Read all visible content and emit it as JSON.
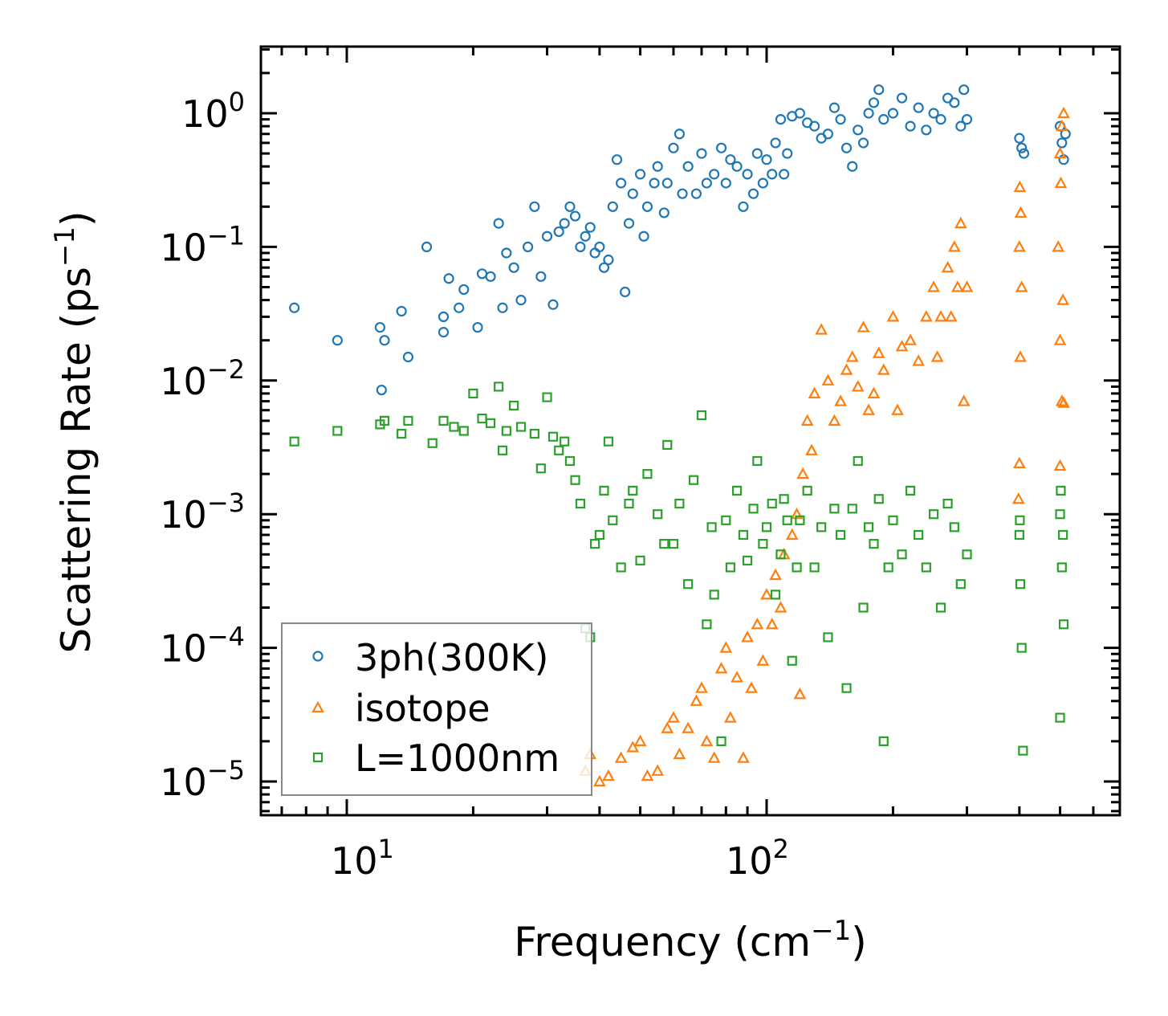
{
  "chart_data": {
    "type": "scatter",
    "title": "",
    "xlabel": "Frequency (cm",
    "xlabel_sup": "−1",
    "xlabel_end": ")",
    "ylabel": "Scattering Rate (ps",
    "ylabel_sup": "−1",
    "ylabel_end": ")",
    "xscale": "log",
    "yscale": "log",
    "xlim": [
      6.2,
      694
    ],
    "ylim": [
      5.6e-06,
      3.16
    ],
    "x_ticks": [
      {
        "base": "10",
        "exp": "1",
        "value": 10
      },
      {
        "base": "10",
        "exp": "2",
        "value": 100
      }
    ],
    "y_ticks": [
      {
        "base": "10",
        "exp": "0",
        "value": 1
      },
      {
        "base": "10",
        "exp": "−1",
        "value": 0.1
      },
      {
        "base": "10",
        "exp": "−2",
        "value": 0.01
      },
      {
        "base": "10",
        "exp": "−3",
        "value": 0.001
      },
      {
        "base": "10",
        "exp": "−4",
        "value": 0.0001
      },
      {
        "base": "10",
        "exp": "−5",
        "value": 1e-05
      }
    ],
    "grid": false,
    "legend_placement": "lower-left",
    "series": [
      {
        "name": "3ph(300K)",
        "marker": "circle",
        "color": "#1f77b4",
        "points": [
          [
            7.5,
            0.035
          ],
          [
            9.5,
            0.02
          ],
          [
            12,
            0.025
          ],
          [
            12.3,
            0.02
          ],
          [
            12.1,
            0.0085
          ],
          [
            13.5,
            0.033
          ],
          [
            14,
            0.015
          ],
          [
            15.5,
            0.1
          ],
          [
            17,
            0.03
          ],
          [
            17,
            0.023
          ],
          [
            17.5,
            0.058
          ],
          [
            18.5,
            0.035
          ],
          [
            19,
            0.048
          ],
          [
            20.5,
            0.025
          ],
          [
            21,
            0.063
          ],
          [
            22,
            0.06
          ],
          [
            23,
            0.15
          ],
          [
            23.5,
            0.035
          ],
          [
            24,
            0.09
          ],
          [
            25,
            0.07
          ],
          [
            26,
            0.04
          ],
          [
            27,
            0.1
          ],
          [
            28,
            0.2
          ],
          [
            29,
            0.06
          ],
          [
            30,
            0.12
          ],
          [
            31,
            0.037
          ],
          [
            32,
            0.13
          ],
          [
            33,
            0.15
          ],
          [
            34,
            0.2
          ],
          [
            35,
            0.17
          ],
          [
            36,
            0.1
          ],
          [
            37,
            0.12
          ],
          [
            38,
            0.14
          ],
          [
            39,
            0.09
          ],
          [
            40,
            0.1
          ],
          [
            41,
            0.07
          ],
          [
            42,
            0.08
          ],
          [
            43,
            0.2
          ],
          [
            44,
            0.45
          ],
          [
            45,
            0.3
          ],
          [
            46,
            0.046
          ],
          [
            47,
            0.15
          ],
          [
            48,
            0.25
          ],
          [
            50,
            0.35
          ],
          [
            51,
            0.12
          ],
          [
            52,
            0.2
          ],
          [
            54,
            0.3
          ],
          [
            55,
            0.4
          ],
          [
            57,
            0.18
          ],
          [
            58,
            0.3
          ],
          [
            60,
            0.55
          ],
          [
            62,
            0.7
          ],
          [
            63,
            0.25
          ],
          [
            65,
            0.4
          ],
          [
            68,
            0.25
          ],
          [
            70,
            0.5
          ],
          [
            72,
            0.3
          ],
          [
            75,
            0.35
          ],
          [
            78,
            0.55
          ],
          [
            80,
            0.3
          ],
          [
            82,
            0.45
          ],
          [
            85,
            0.4
          ],
          [
            88,
            0.2
          ],
          [
            90,
            0.35
          ],
          [
            93,
            0.25
          ],
          [
            95,
            0.5
          ],
          [
            98,
            0.3
          ],
          [
            100,
            0.45
          ],
          [
            103,
            0.35
          ],
          [
            105,
            0.6
          ],
          [
            108,
            0.9
          ],
          [
            110,
            0.35
          ],
          [
            112,
            0.5
          ],
          [
            115,
            0.95
          ],
          [
            120,
            1.0
          ],
          [
            125,
            0.85
          ],
          [
            130,
            0.8
          ],
          [
            135,
            0.65
          ],
          [
            140,
            0.7
          ],
          [
            145,
            1.1
          ],
          [
            150,
            0.9
          ],
          [
            155,
            0.55
          ],
          [
            160,
            0.4
          ],
          [
            165,
            0.75
          ],
          [
            170,
            0.6
          ],
          [
            175,
            1.0
          ],
          [
            180,
            1.2
          ],
          [
            185,
            1.5
          ],
          [
            190,
            0.9
          ],
          [
            200,
            1.0
          ],
          [
            210,
            1.3
          ],
          [
            220,
            0.8
          ],
          [
            230,
            1.1
          ],
          [
            240,
            0.75
          ],
          [
            250,
            1.0
          ],
          [
            260,
            0.9
          ],
          [
            270,
            1.3
          ],
          [
            280,
            1.2
          ],
          [
            290,
            0.8
          ],
          [
            295,
            1.5
          ],
          [
            300,
            0.9
          ],
          [
            400,
            0.65
          ],
          [
            405,
            0.55
          ],
          [
            410,
            0.5
          ],
          [
            500,
            0.8
          ],
          [
            505,
            0.6
          ],
          [
            510,
            0.45
          ],
          [
            515,
            0.7
          ]
        ]
      },
      {
        "name": "isotope",
        "marker": "triangle",
        "color": "#ff7f0e",
        "points": [
          [
            37,
            1.2e-05
          ],
          [
            38,
            1.6e-05
          ],
          [
            40,
            1e-05
          ],
          [
            42,
            1.1e-05
          ],
          [
            45,
            1.5e-05
          ],
          [
            48,
            1.8e-05
          ],
          [
            50,
            2e-05
          ],
          [
            52,
            1.1e-05
          ],
          [
            55,
            1.2e-05
          ],
          [
            58,
            2.5e-05
          ],
          [
            60,
            3e-05
          ],
          [
            62,
            1.6e-05
          ],
          [
            65,
            2.5e-05
          ],
          [
            68,
            4e-05
          ],
          [
            70,
            5e-05
          ],
          [
            72,
            2e-05
          ],
          [
            75,
            1.5e-05
          ],
          [
            78,
            7e-05
          ],
          [
            80,
            0.0001
          ],
          [
            82,
            3e-05
          ],
          [
            85,
            6e-05
          ],
          [
            88,
            1.5e-05
          ],
          [
            90,
            0.00012
          ],
          [
            92,
            5e-05
          ],
          [
            95,
            0.00015
          ],
          [
            98,
            8e-05
          ],
          [
            100,
            0.00025
          ],
          [
            103,
            0.00015
          ],
          [
            105,
            0.00035
          ],
          [
            108,
            0.0002
          ],
          [
            110,
            0.0005
          ],
          [
            115,
            0.0007
          ],
          [
            118,
            0.001
          ],
          [
            120,
            4.5e-05
          ],
          [
            122,
            0.002
          ],
          [
            125,
            0.005
          ],
          [
            128,
            0.003
          ],
          [
            130,
            0.008
          ],
          [
            135,
            0.024
          ],
          [
            140,
            0.01
          ],
          [
            145,
            0.005
          ],
          [
            150,
            0.007
          ],
          [
            155,
            0.012
          ],
          [
            160,
            0.015
          ],
          [
            165,
            0.009
          ],
          [
            170,
            0.025
          ],
          [
            175,
            0.006
          ],
          [
            180,
            0.008
          ],
          [
            185,
            0.016
          ],
          [
            190,
            0.012
          ],
          [
            200,
            0.03
          ],
          [
            205,
            0.006
          ],
          [
            210,
            0.018
          ],
          [
            220,
            0.02
          ],
          [
            230,
            0.014
          ],
          [
            240,
            0.03
          ],
          [
            250,
            0.05
          ],
          [
            255,
            0.015
          ],
          [
            260,
            0.03
          ],
          [
            270,
            0.07
          ],
          [
            275,
            0.03
          ],
          [
            280,
            0.1
          ],
          [
            285,
            0.05
          ],
          [
            290,
            0.15
          ],
          [
            295,
            0.007
          ],
          [
            300,
            0.05
          ],
          [
            400,
            0.1
          ],
          [
            401,
            0.28
          ],
          [
            402,
            0.015
          ],
          [
            400,
            0.0024
          ],
          [
            398,
            0.0013
          ],
          [
            405,
            0.05
          ],
          [
            403,
            0.18
          ],
          [
            500,
            0.5
          ],
          [
            505,
            0.8
          ],
          [
            510,
            1.0
          ],
          [
            495,
            0.1
          ],
          [
            500,
            0.02
          ],
          [
            505,
            0.007
          ],
          [
            500,
            0.0023
          ],
          [
            510,
            0.0068
          ],
          [
            502,
            0.3
          ],
          [
            508,
            0.04
          ]
        ]
      },
      {
        "name": "L=1000nm",
        "marker": "square",
        "color": "#2ca02c",
        "points": [
          [
            7.5,
            0.0035
          ],
          [
            9.5,
            0.0042
          ],
          [
            12,
            0.0047
          ],
          [
            12.3,
            0.005
          ],
          [
            13.5,
            0.004
          ],
          [
            14,
            0.005
          ],
          [
            16,
            0.0034
          ],
          [
            17,
            0.005
          ],
          [
            18,
            0.0045
          ],
          [
            19,
            0.0042
          ],
          [
            20,
            0.008
          ],
          [
            21,
            0.0052
          ],
          [
            22,
            0.0048
          ],
          [
            23,
            0.009
          ],
          [
            23.5,
            0.003
          ],
          [
            24,
            0.0042
          ],
          [
            25,
            0.0065
          ],
          [
            26,
            0.0045
          ],
          [
            28,
            0.004
          ],
          [
            29,
            0.0022
          ],
          [
            30,
            0.0075
          ],
          [
            31,
            0.0038
          ],
          [
            32,
            0.003
          ],
          [
            33,
            0.0035
          ],
          [
            34,
            0.0025
          ],
          [
            35,
            0.0018
          ],
          [
            36,
            0.0012
          ],
          [
            37,
            0.00014
          ],
          [
            38,
            0.00012
          ],
          [
            39,
            0.0006
          ],
          [
            40,
            0.0007
          ],
          [
            41,
            0.0015
          ],
          [
            42,
            0.0035
          ],
          [
            43,
            0.0009
          ],
          [
            45,
            0.0004
          ],
          [
            47,
            0.0012
          ],
          [
            48,
            0.0015
          ],
          [
            50,
            0.00045
          ],
          [
            52,
            0.002
          ],
          [
            55,
            0.001
          ],
          [
            57,
            0.0006
          ],
          [
            58,
            0.0033
          ],
          [
            60,
            0.0006
          ],
          [
            62,
            0.0012
          ],
          [
            65,
            0.0003
          ],
          [
            67,
            0.0018
          ],
          [
            70,
            0.0055
          ],
          [
            72,
            0.00015
          ],
          [
            74,
            0.0008
          ],
          [
            75,
            0.00025
          ],
          [
            78,
            2e-05
          ],
          [
            80,
            0.0009
          ],
          [
            82,
            0.0004
          ],
          [
            85,
            0.0015
          ],
          [
            88,
            0.0007
          ],
          [
            90,
            0.00045
          ],
          [
            93,
            0.0011
          ],
          [
            95,
            0.0025
          ],
          [
            98,
            0.0006
          ],
          [
            100,
            0.0008
          ],
          [
            103,
            0.0012
          ],
          [
            105,
            0.00025
          ],
          [
            108,
            0.0005
          ],
          [
            110,
            0.0013
          ],
          [
            112,
            0.0009
          ],
          [
            115,
            8e-05
          ],
          [
            118,
            0.0004
          ],
          [
            120,
            0.0009
          ],
          [
            125,
            0.0015
          ],
          [
            130,
            0.0004
          ],
          [
            135,
            0.0008
          ],
          [
            140,
            0.00012
          ],
          [
            145,
            0.0011
          ],
          [
            150,
            0.0007
          ],
          [
            155,
            5e-05
          ],
          [
            160,
            0.0011
          ],
          [
            165,
            0.0025
          ],
          [
            170,
            0.0002
          ],
          [
            175,
            0.0008
          ],
          [
            180,
            0.0006
          ],
          [
            185,
            0.0013
          ],
          [
            190,
            2e-05
          ],
          [
            195,
            0.0004
          ],
          [
            200,
            0.0009
          ],
          [
            210,
            0.0005
          ],
          [
            220,
            0.0015
          ],
          [
            230,
            0.0007
          ],
          [
            240,
            0.0004
          ],
          [
            250,
            0.001
          ],
          [
            260,
            0.0002
          ],
          [
            270,
            0.0012
          ],
          [
            280,
            0.0008
          ],
          [
            290,
            0.0003
          ],
          [
            300,
            0.0005
          ],
          [
            400,
            0.0007
          ],
          [
            401,
            0.0009
          ],
          [
            402,
            0.0003
          ],
          [
            405,
            0.0001
          ],
          [
            408,
            1.7e-05
          ],
          [
            500,
            0.001
          ],
          [
            502,
            0.0015
          ],
          [
            505,
            0.0004
          ],
          [
            510,
            0.00015
          ],
          [
            500,
            3e-05
          ],
          [
            508,
            0.0007
          ]
        ]
      }
    ]
  }
}
